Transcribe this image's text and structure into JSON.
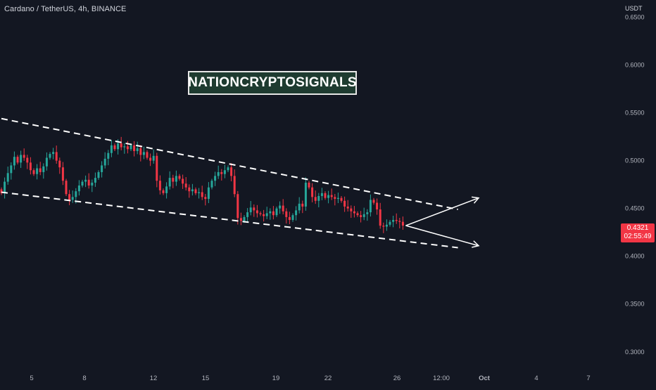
{
  "header": {
    "title": "Cardano / TetherUS, 4h, BINANCE",
    "currency": "USDT"
  },
  "watermark": {
    "text": "NATIONCRYPTOSIGNALS"
  },
  "last_price": {
    "value": "0.4321",
    "countdown": "02:55:49",
    "color": "#f23645"
  },
  "colors": {
    "background": "#131722",
    "up": "#26a69a",
    "down": "#f23645",
    "trendline": "#ffffff"
  },
  "chart_data": {
    "type": "candlestick",
    "symbol": "Cardano / TetherUS",
    "interval": "4h",
    "exchange": "BINANCE",
    "y_axis": {
      "ticks": [
        "0.6500",
        "0.6000",
        "0.5500",
        "0.5000",
        "0.4500",
        "0.4000",
        "0.3500",
        "0.3000"
      ],
      "range": [
        0.28,
        0.668
      ],
      "side": "right"
    },
    "x_axis": {
      "ticks": [
        "5",
        "8",
        "12",
        "15",
        "19",
        "22",
        "26",
        "12:00",
        "Oct",
        "4",
        "7"
      ]
    },
    "closes": [
      0.466,
      0.478,
      0.487,
      0.495,
      0.504,
      0.498,
      0.506,
      0.503,
      0.498,
      0.49,
      0.486,
      0.492,
      0.488,
      0.494,
      0.503,
      0.507,
      0.509,
      0.5,
      0.493,
      0.479,
      0.465,
      0.459,
      0.462,
      0.468,
      0.474,
      0.478,
      0.48,
      0.474,
      0.477,
      0.482,
      0.488,
      0.495,
      0.502,
      0.508,
      0.516,
      0.512,
      0.518,
      0.514,
      0.515,
      0.512,
      0.516,
      0.51,
      0.513,
      0.506,
      0.509,
      0.503,
      0.5,
      0.505,
      0.479,
      0.469,
      0.466,
      0.473,
      0.482,
      0.478,
      0.484,
      0.481,
      0.476,
      0.472,
      0.468,
      0.47,
      0.466,
      0.467,
      0.462,
      0.46,
      0.472,
      0.479,
      0.484,
      0.488,
      0.486,
      0.49,
      0.493,
      0.484,
      0.465,
      0.44,
      0.437,
      0.441,
      0.446,
      0.451,
      0.448,
      0.445,
      0.444,
      0.442,
      0.445,
      0.447,
      0.443,
      0.45,
      0.453,
      0.447,
      0.441,
      0.438,
      0.443,
      0.448,
      0.455,
      0.452,
      0.477,
      0.472,
      0.462,
      0.458,
      0.463,
      0.466,
      0.461,
      0.464,
      0.462,
      0.46,
      0.461,
      0.458,
      0.452,
      0.45,
      0.447,
      0.445,
      0.443,
      0.441,
      0.444,
      0.446,
      0.459,
      0.456,
      0.449,
      0.432,
      0.431,
      0.433,
      0.436,
      0.438,
      0.437,
      0.436,
      0.4321
    ],
    "trendlines": [
      {
        "name": "upper",
        "from": [
          0,
          0.544
        ],
        "to": [
          141,
          0.449
        ],
        "style": "dashed"
      },
      {
        "name": "lower",
        "from": [
          0,
          0.467
        ],
        "to": [
          141,
          0.409
        ],
        "style": "dashed"
      }
    ],
    "projection_arrows": [
      {
        "direction": "up",
        "target": 0.461
      },
      {
        "direction": "down",
        "target": 0.411
      }
    ]
  }
}
